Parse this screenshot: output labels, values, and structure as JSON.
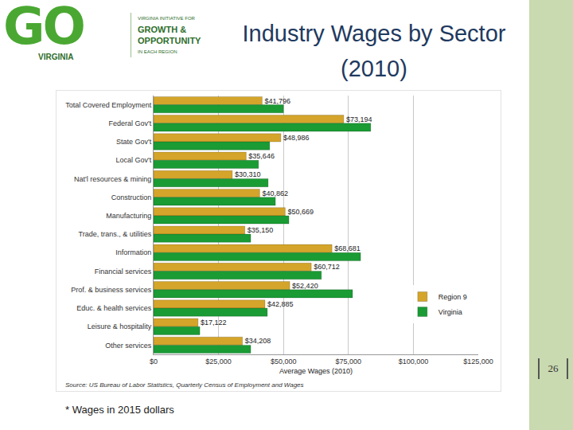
{
  "chart_data": {
    "type": "bar",
    "orientation": "horizontal",
    "title": "Industry Wages by Sector (2010)",
    "x_label": "Average Wages (2010)",
    "source": "Source: US Bureau of Labor Statistics, Quarterly Census of Employment and Wages",
    "categories": [
      "Total Covered Employment",
      "Federal Gov't",
      "State Gov't",
      "Local Gov't",
      "Nat'l resources & mining",
      "Construction",
      "Manufacturing",
      "Trade, trans., & utilities",
      "Information",
      "Financial services",
      "Prof. & business services",
      "Educ. & health services",
      "Leisure & hospitality",
      "Other services"
    ],
    "series": [
      {
        "name": "Region 9",
        "color": "#d4a52a",
        "values": [
          41796,
          73194,
          48986,
          35646,
          30310,
          40862,
          50669,
          35150,
          68681,
          60712,
          52420,
          42885,
          17122,
          34208
        ],
        "value_labels": [
          "$41,796",
          "$73,194",
          "$48,986",
          "$35,646",
          "$30,310",
          "$40,862",
          "$50,669",
          "$35,150",
          "$68,681",
          "$60,712",
          "$52,420",
          "$42,885",
          "$17,122",
          "$34,208"
        ]
      },
      {
        "name": "Virginia",
        "color": "#1a9b34",
        "values": [
          50000,
          83600,
          44700,
          40400,
          44100,
          46900,
          52100,
          37400,
          79700,
          64600,
          76600,
          43800,
          17800,
          37400
        ]
      }
    ],
    "xlim": [
      0,
      125000
    ],
    "xticks": [
      {
        "value": 0,
        "label": "$0"
      },
      {
        "value": 25000,
        "label": "$25,000"
      },
      {
        "value": 50000,
        "label": "$50,000"
      },
      {
        "value": 75000,
        "label": "$75,000"
      },
      {
        "value": 100000,
        "label": "$100,000"
      },
      {
        "value": 125000,
        "label": "$125,000"
      }
    ],
    "grid": true,
    "legend": "lower right",
    "data_labels": true
  },
  "slide": {
    "logo": "GO",
    "logo_sub": "VIRGINIA",
    "tagline": [
      "VIRGINIA INITIATIVE FOR",
      "GROWTH &",
      "OPPORTUNITY",
      "IN EACH REGION"
    ],
    "page_number": "26",
    "footnote": "* Wages in 2015 dollars"
  }
}
